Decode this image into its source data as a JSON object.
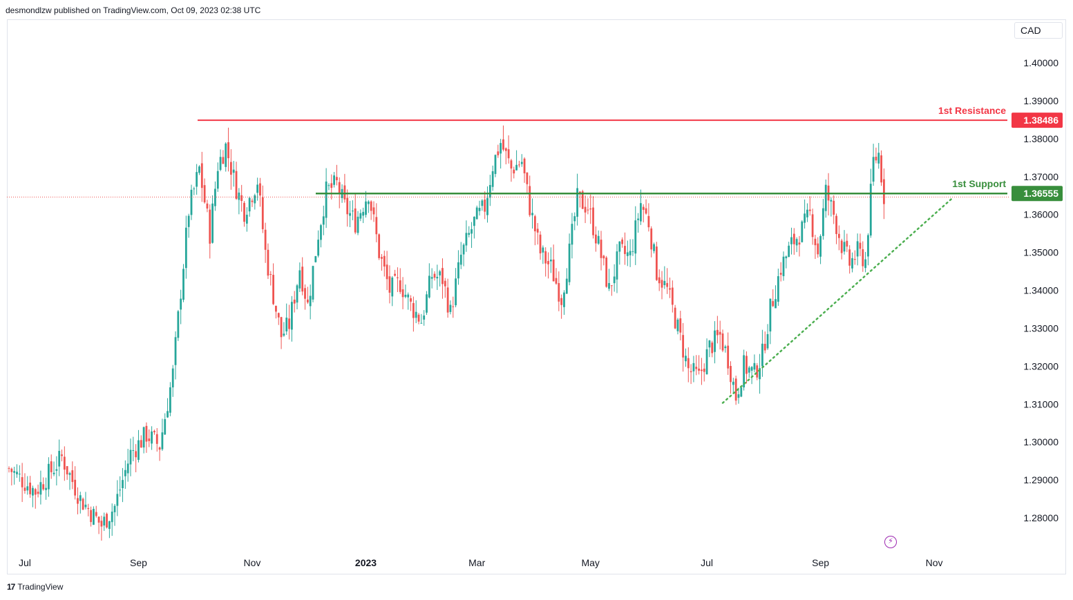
{
  "header": {
    "publisher_line": "desmondlzw published on TradingView.com, Oct 09, 2023 02:38 UTC"
  },
  "currency_label": "CAD",
  "footer": {
    "brand": "TradingView",
    "logo_glyph": "17"
  },
  "colors": {
    "up": "#26a69a",
    "down": "#ef5350",
    "resistance": "#f23645",
    "support": "#388e3c",
    "trend": "#4caf50",
    "accent": "#9c27b0"
  },
  "chart_data": {
    "type": "candlestick",
    "title": "",
    "xlabel": "",
    "ylabel": "",
    "ylim": [
      1.2725,
      1.4125
    ],
    "y_ticks": [
      1.28,
      1.29,
      1.3,
      1.31,
      1.32,
      1.33,
      1.34,
      1.35,
      1.36,
      1.37,
      1.38,
      1.39,
      1.4
    ],
    "y_tick_labels": [
      "1.28000",
      "1.29000",
      "1.30000",
      "1.31000",
      "1.32000",
      "1.33000",
      "1.34000",
      "1.35000",
      "1.36000",
      "1.37000",
      "1.38000",
      "1.39000",
      "1.40000"
    ],
    "x_ticks": [
      {
        "label": "Jul",
        "index": 6
      },
      {
        "label": "Sep",
        "index": 49
      },
      {
        "label": "Nov",
        "index": 92
      },
      {
        "label": "2023",
        "index": 135
      },
      {
        "label": "Mar",
        "index": 177
      },
      {
        "label": "May",
        "index": 220
      },
      {
        "label": "Jul",
        "index": 264
      },
      {
        "label": "Sep",
        "index": 307
      },
      {
        "label": "Nov",
        "index": 350
      }
    ],
    "anchors": [
      [
        0,
        1.293
      ],
      [
        10,
        1.287
      ],
      [
        20,
        1.296
      ],
      [
        27,
        1.285
      ],
      [
        35,
        1.278
      ],
      [
        40,
        1.283
      ],
      [
        46,
        1.297
      ],
      [
        52,
        1.302
      ],
      [
        57,
        1.299
      ],
      [
        62,
        1.318
      ],
      [
        65,
        1.34
      ],
      [
        68,
        1.361
      ],
      [
        72,
        1.372
      ],
      [
        76,
        1.355
      ],
      [
        79,
        1.373
      ],
      [
        82,
        1.378
      ],
      [
        86,
        1.367
      ],
      [
        89,
        1.361
      ],
      [
        94,
        1.369
      ],
      [
        97,
        1.35
      ],
      [
        101,
        1.335
      ],
      [
        103,
        1.328
      ],
      [
        106,
        1.331
      ],
      [
        110,
        1.346
      ],
      [
        113,
        1.336
      ],
      [
        117,
        1.355
      ],
      [
        120,
        1.366
      ],
      [
        124,
        1.368
      ],
      [
        127,
        1.362
      ],
      [
        131,
        1.358
      ],
      [
        136,
        1.366
      ],
      [
        140,
        1.35
      ],
      [
        144,
        1.34
      ],
      [
        148,
        1.342
      ],
      [
        152,
        1.336
      ],
      [
        156,
        1.332
      ],
      [
        160,
        1.344
      ],
      [
        164,
        1.343
      ],
      [
        167,
        1.334
      ],
      [
        171,
        1.349
      ],
      [
        176,
        1.358
      ],
      [
        180,
        1.362
      ],
      [
        183,
        1.373
      ],
      [
        186,
        1.379
      ],
      [
        190,
        1.372
      ],
      [
        194,
        1.374
      ],
      [
        197,
        1.362
      ],
      [
        201,
        1.35
      ],
      [
        205,
        1.346
      ],
      [
        209,
        1.338
      ],
      [
        212,
        1.35
      ],
      [
        215,
        1.364
      ],
      [
        219,
        1.362
      ],
      [
        223,
        1.352
      ],
      [
        227,
        1.34
      ],
      [
        231,
        1.35
      ],
      [
        235,
        1.349
      ],
      [
        239,
        1.363
      ],
      [
        242,
        1.358
      ],
      [
        245,
        1.345
      ],
      [
        249,
        1.34
      ],
      [
        253,
        1.33
      ],
      [
        257,
        1.319
      ],
      [
        261,
        1.317
      ],
      [
        265,
        1.325
      ],
      [
        269,
        1.328
      ],
      [
        272,
        1.322
      ],
      [
        275,
        1.312
      ],
      [
        278,
        1.32
      ],
      [
        282,
        1.318
      ],
      [
        285,
        1.323
      ],
      [
        288,
        1.335
      ],
      [
        292,
        1.346
      ],
      [
        296,
        1.352
      ],
      [
        300,
        1.356
      ],
      [
        303,
        1.36
      ],
      [
        306,
        1.35
      ],
      [
        309,
        1.366
      ],
      [
        312,
        1.36
      ],
      [
        315,
        1.352
      ],
      [
        318,
        1.347
      ],
      [
        321,
        1.35
      ],
      [
        324,
        1.348
      ],
      [
        327,
        1.374
      ],
      [
        329,
        1.376
      ],
      [
        331,
        1.365
      ]
    ],
    "levels": [
      {
        "name": "1st Resistance",
        "value": 1.38486,
        "price_label": "1.38486"
      },
      {
        "name": "1st Support",
        "value": 1.36555,
        "price_label": "1.36555"
      }
    ],
    "trendline": {
      "start": [
        270,
        1.3103
      ],
      "end": [
        357,
        1.3644
      ]
    },
    "current_price": 1.3646
  }
}
